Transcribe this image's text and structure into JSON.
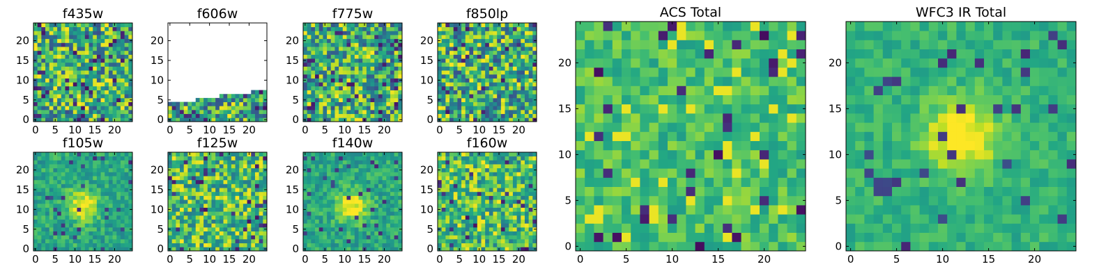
{
  "chart_data": [
    {
      "type": "heatmap",
      "title": "f435w",
      "size": 25,
      "x_ticks": [
        "0",
        "5",
        "10",
        "15",
        "20"
      ],
      "y_ticks": [
        "0",
        "5",
        "10",
        "15",
        "20"
      ],
      "profile": "noise",
      "seed": 11,
      "colormap": "viridis"
    },
    {
      "type": "heatmap",
      "title": "f606w",
      "size": 25,
      "x_ticks": [
        "0",
        "5",
        "10",
        "15",
        "20"
      ],
      "y_ticks": [
        "0",
        "5",
        "10",
        "15",
        "20"
      ],
      "profile": "partial",
      "seed": 23,
      "colormap": "viridis",
      "coverage_rows_by_column": [
        5,
        5,
        5,
        5,
        5,
        5,
        5,
        6,
        6,
        6,
        6,
        6,
        6,
        7,
        7,
        7,
        7,
        7,
        7,
        7,
        7,
        8,
        8,
        8,
        8
      ]
    },
    {
      "type": "heatmap",
      "title": "f775w",
      "size": 25,
      "x_ticks": [
        "0",
        "5",
        "10",
        "15",
        "20"
      ],
      "y_ticks": [
        "0",
        "5",
        "10",
        "15",
        "20"
      ],
      "profile": "noise",
      "seed": 37,
      "colormap": "viridis"
    },
    {
      "type": "heatmap",
      "title": "f850lp",
      "size": 25,
      "x_ticks": [
        "0",
        "5",
        "10",
        "15",
        "20"
      ],
      "y_ticks": [
        "0",
        "5",
        "10",
        "15",
        "20"
      ],
      "profile": "noise",
      "seed": 41,
      "colormap": "viridis"
    },
    {
      "type": "heatmap",
      "title": "f105w",
      "size": 25,
      "x_ticks": [
        "0",
        "5",
        "10",
        "15",
        "20"
      ],
      "y_ticks": [
        "0",
        "5",
        "10",
        "15",
        "20"
      ],
      "profile": "source",
      "seed": 53,
      "colormap": "viridis",
      "source_center": [
        12,
        11
      ]
    },
    {
      "type": "heatmap",
      "title": "f125w",
      "size": 25,
      "x_ticks": [
        "0",
        "5",
        "10",
        "15",
        "20"
      ],
      "y_ticks": [
        "0",
        "5",
        "10",
        "15",
        "20"
      ],
      "profile": "bright",
      "seed": 67,
      "colormap": "viridis"
    },
    {
      "type": "heatmap",
      "title": "f140w",
      "size": 25,
      "x_ticks": [
        "0",
        "5",
        "10",
        "15",
        "20"
      ],
      "y_ticks": [
        "0",
        "5",
        "10",
        "15",
        "20"
      ],
      "profile": "source",
      "seed": 71,
      "colormap": "viridis",
      "source_center": [
        12,
        11
      ]
    },
    {
      "type": "heatmap",
      "title": "f160w",
      "size": 25,
      "x_ticks": [
        "0",
        "5",
        "10",
        "15",
        "20"
      ],
      "y_ticks": [
        "0",
        "5",
        "10",
        "15",
        "20"
      ],
      "profile": "bright",
      "seed": 83,
      "colormap": "viridis"
    },
    {
      "type": "heatmap",
      "title": "ACS Total",
      "size": 25,
      "x_ticks": [
        "0",
        "5",
        "10",
        "15",
        "20"
      ],
      "y_ticks": [
        "0",
        "5",
        "10",
        "15",
        "20"
      ],
      "profile": "acs",
      "seed": 97,
      "colormap": "viridis"
    },
    {
      "type": "heatmap",
      "title": "WFC3 IR Total",
      "size": 25,
      "x_ticks": [
        "0",
        "5",
        "10",
        "15",
        "20"
      ],
      "y_ticks": [
        "0",
        "5",
        "10",
        "15",
        "20"
      ],
      "profile": "wfc3",
      "seed": 101,
      "colormap": "viridis",
      "source_center": [
        12,
        12
      ]
    }
  ]
}
